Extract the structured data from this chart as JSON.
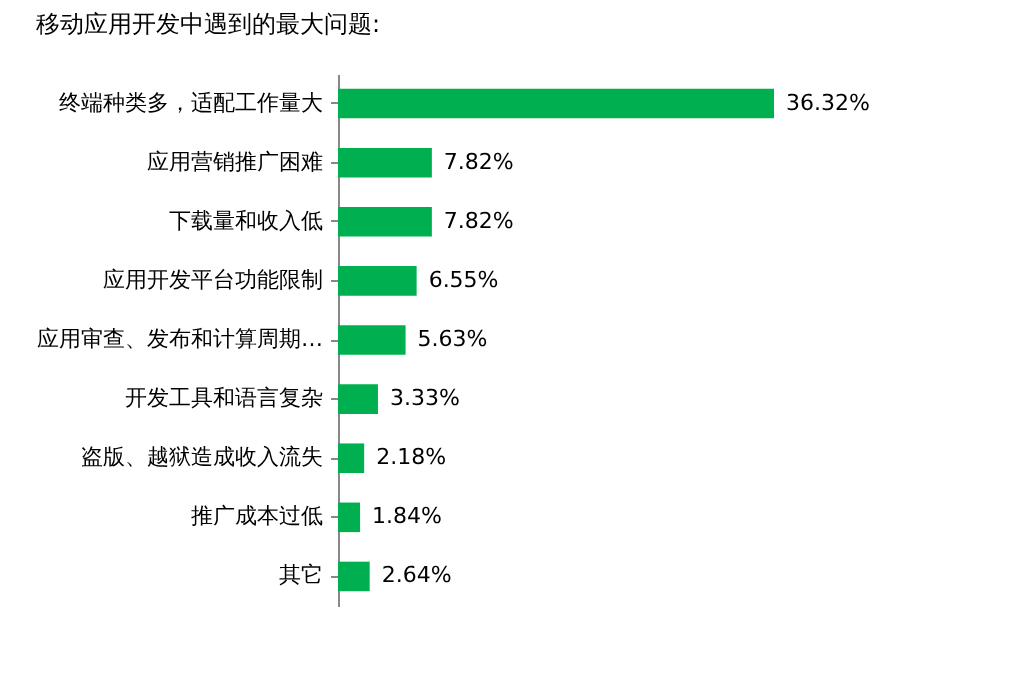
{
  "chart_data": {
    "type": "bar",
    "orientation": "horizontal",
    "title": "移动应用开发中遇到的最大问题:",
    "categories": [
      "终端种类多，适配工作量大",
      "应用营销推广困难",
      "下载量和收入低",
      "应用开发平台功能限制",
      "应用审查、发布和计算周期…",
      "开发工具和语言复杂",
      "盗版、越狱造成收入流失",
      "推广成本过低",
      "其它"
    ],
    "values": [
      36.32,
      7.82,
      7.82,
      6.55,
      5.63,
      3.33,
      2.18,
      1.84,
      2.64
    ],
    "value_labels": [
      "36.32%",
      "7.82%",
      "7.82%",
      "6.55%",
      "5.63%",
      "3.33%",
      "2.18%",
      "1.84%",
      "2.64%"
    ],
    "color": "#00b050",
    "grid": false
  }
}
